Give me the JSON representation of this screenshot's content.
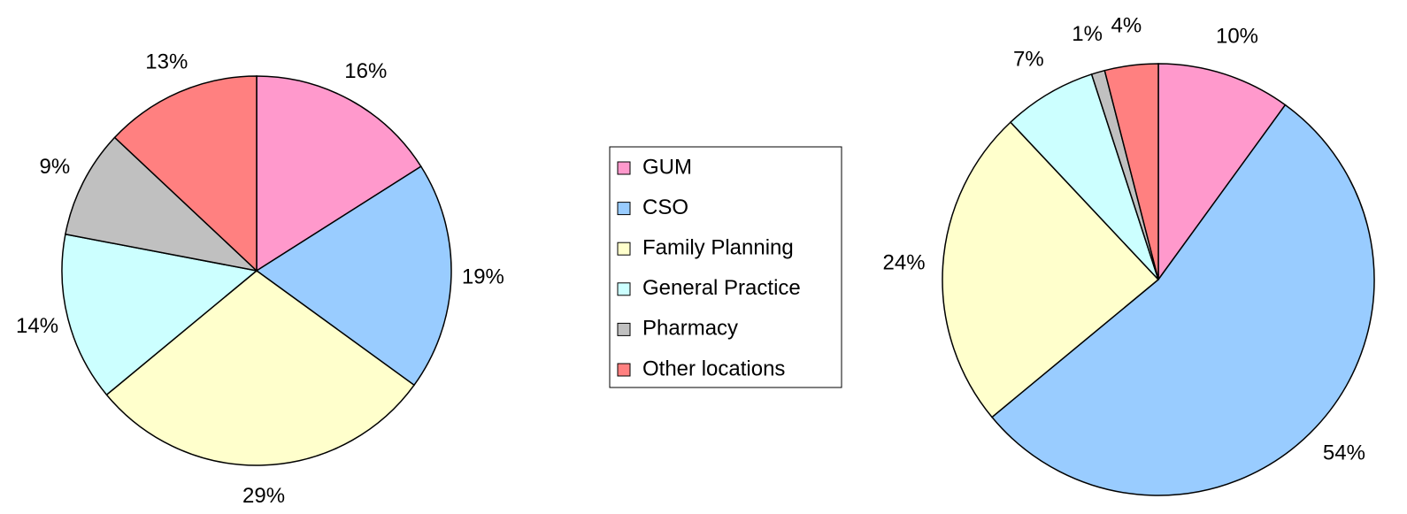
{
  "chart_data": {
    "type": "pie",
    "categories": [
      "GUM",
      "CSO",
      "Family Planning",
      "General Practice",
      "Pharmacy",
      "Other locations"
    ],
    "colors": [
      "#ff99cc",
      "#99ccff",
      "#ffffcc",
      "#ccffff",
      "#c0c0c0",
      "#ff8080"
    ],
    "series": [
      {
        "values": [
          16,
          19,
          29,
          14,
          9,
          13
        ],
        "value_labels": [
          "16%",
          "19%",
          "29%",
          "14%",
          "9%",
          "13%"
        ]
      },
      {
        "values": [
          10,
          54,
          24,
          7,
          1,
          4
        ],
        "value_labels": [
          "10%",
          "54%",
          "24%",
          "7%",
          "1%",
          "4%"
        ]
      }
    ]
  }
}
